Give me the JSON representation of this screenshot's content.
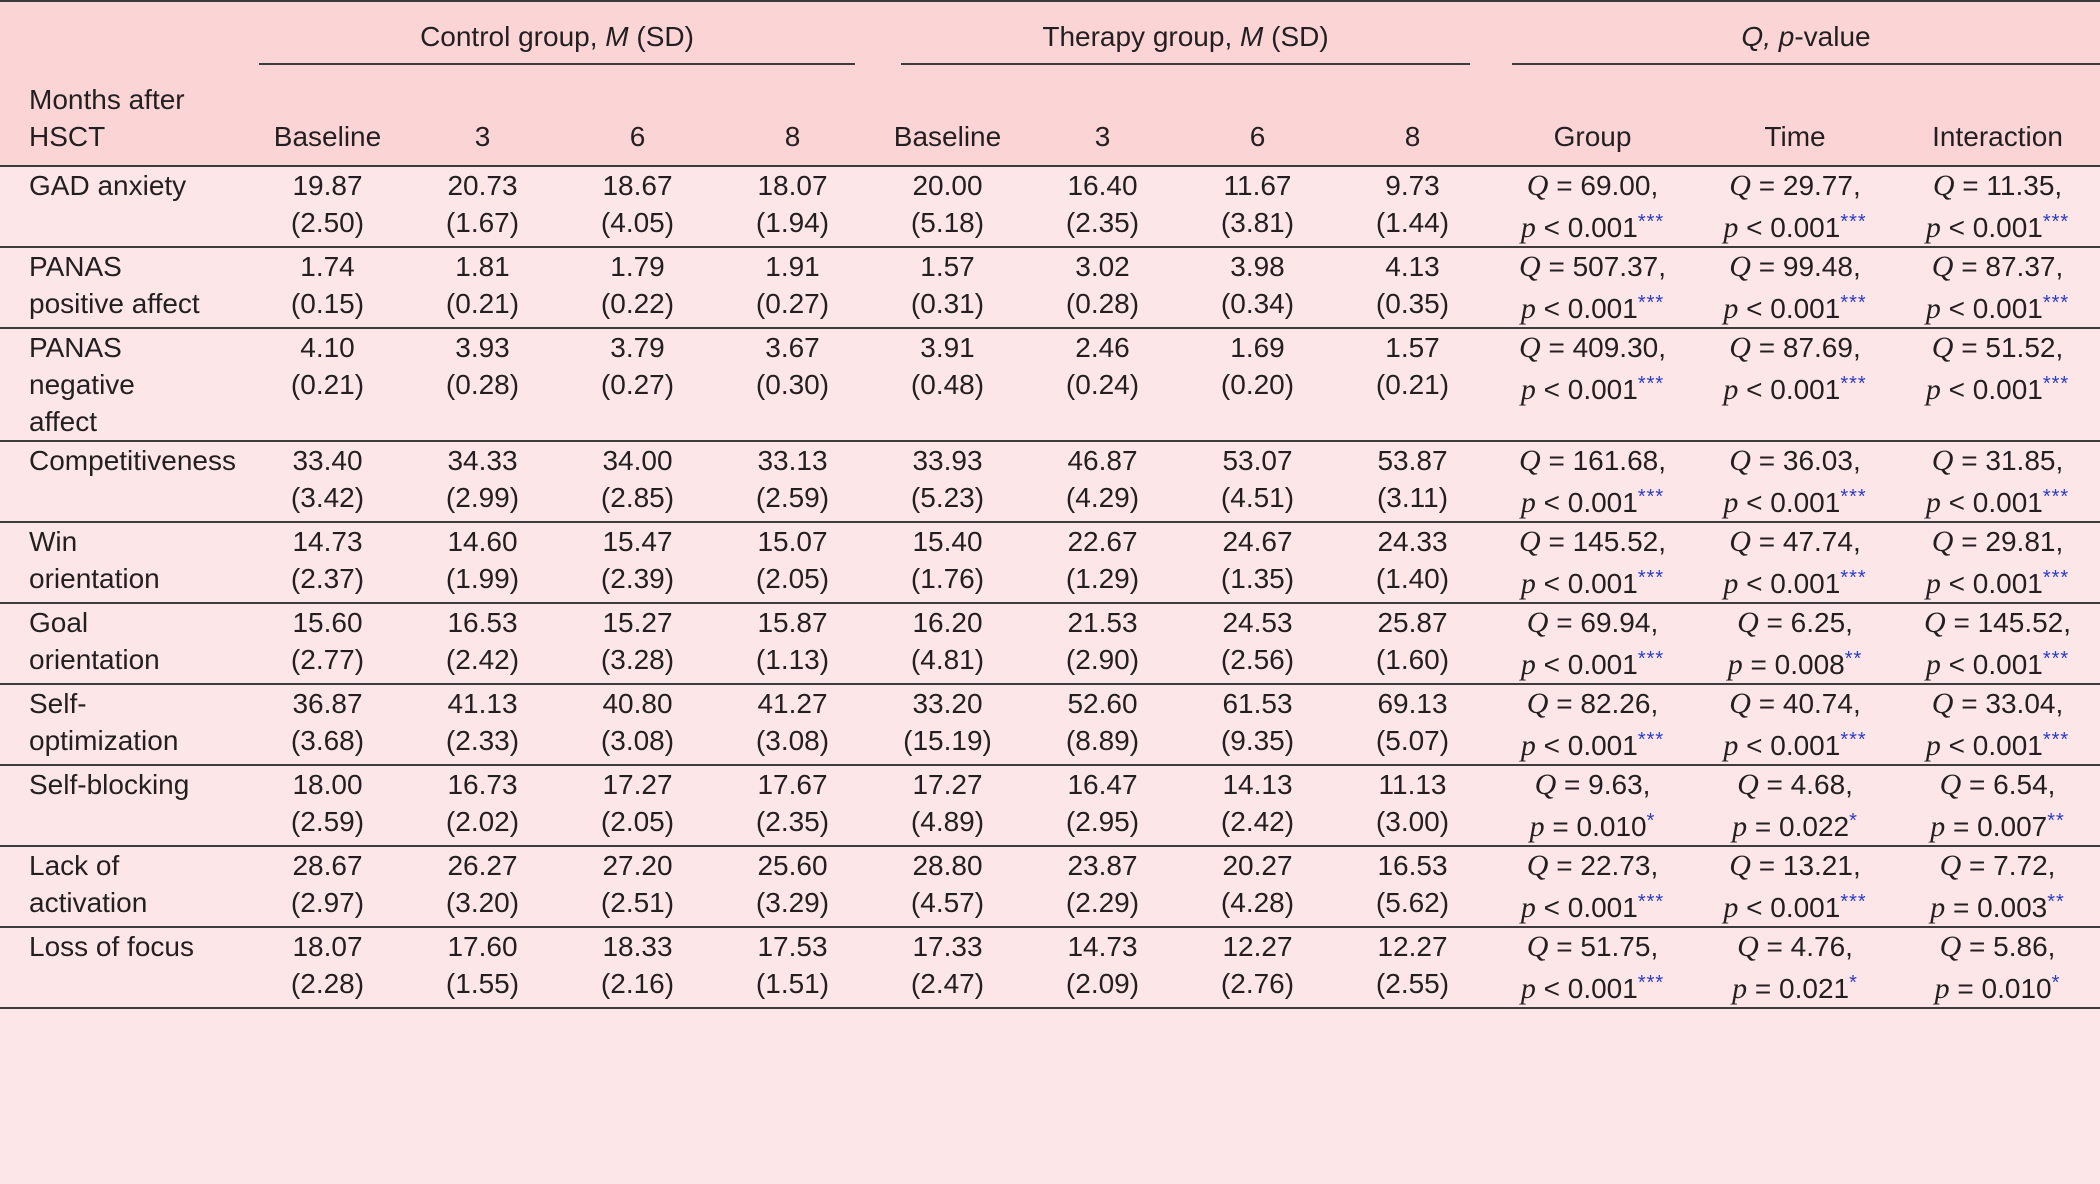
{
  "table": {
    "group_headers": [
      {
        "label_pre": "Control group, ",
        "label_ital": "M",
        "label_post": " (SD)"
      },
      {
        "label_pre": "Therapy group, ",
        "label_ital": "M",
        "label_post": " (SD)"
      },
      {
        "label_pre": "",
        "label_ital": "Q, p",
        "label_post": "-value"
      }
    ],
    "row_label_header_lines": [
      "Months after",
      "HSCT"
    ],
    "sub_headers": [
      "Baseline",
      "3",
      "6",
      "8",
      "Baseline",
      "3",
      "6",
      "8",
      "Group",
      "Time",
      "Interaction"
    ],
    "rows": [
      {
        "label_lines": [
          "GAD anxiety"
        ],
        "means": [
          [
            "19.87",
            "(2.50)"
          ],
          [
            "20.73",
            "(1.67)"
          ],
          [
            "18.67",
            "(4.05)"
          ],
          [
            "18.07",
            "(1.94)"
          ],
          [
            "20.00",
            "(5.18)"
          ],
          [
            "16.40",
            "(2.35)"
          ],
          [
            "11.67",
            "(3.81)"
          ],
          [
            "9.73",
            "(1.44)"
          ]
        ],
        "stats": [
          {
            "q": "69.00,",
            "rel": "<",
            "p": "0.001",
            "sig": "***"
          },
          {
            "q": "29.77,",
            "rel": "<",
            "p": "0.001",
            "sig": "***"
          },
          {
            "q": "11.35,",
            "rel": "<",
            "p": "0.001",
            "sig": "***"
          }
        ]
      },
      {
        "label_lines": [
          "PANAS",
          "positive affect"
        ],
        "means": [
          [
            "1.74",
            "(0.15)"
          ],
          [
            "1.81",
            "(0.21)"
          ],
          [
            "1.79",
            "(0.22)"
          ],
          [
            "1.91",
            "(0.27)"
          ],
          [
            "1.57",
            "(0.31)"
          ],
          [
            "3.02",
            "(0.28)"
          ],
          [
            "3.98",
            "(0.34)"
          ],
          [
            "4.13",
            "(0.35)"
          ]
        ],
        "stats": [
          {
            "q": "507.37,",
            "rel": "<",
            "p": "0.001",
            "sig": "***"
          },
          {
            "q": "99.48,",
            "rel": "<",
            "p": "0.001",
            "sig": "***"
          },
          {
            "q": "87.37,",
            "rel": "<",
            "p": "0.001",
            "sig": "***"
          }
        ]
      },
      {
        "label_lines": [
          "PANAS",
          "negative",
          "affect"
        ],
        "means": [
          [
            "4.10",
            "(0.21)"
          ],
          [
            "3.93",
            "(0.28)"
          ],
          [
            "3.79",
            "(0.27)"
          ],
          [
            "3.67",
            "(0.30)"
          ],
          [
            "3.91",
            "(0.48)"
          ],
          [
            "2.46",
            "(0.24)"
          ],
          [
            "1.69",
            "(0.20)"
          ],
          [
            "1.57",
            "(0.21)"
          ]
        ],
        "stats": [
          {
            "q": "409.30,",
            "rel": "<",
            "p": "0.001",
            "sig": "***"
          },
          {
            "q": "87.69,",
            "rel": "<",
            "p": "0.001",
            "sig": "***"
          },
          {
            "q": "51.52,",
            "rel": "<",
            "p": "0.001",
            "sig": "***"
          }
        ]
      },
      {
        "label_lines": [
          "Competitiveness"
        ],
        "means": [
          [
            "33.40",
            "(3.42)"
          ],
          [
            "34.33",
            "(2.99)"
          ],
          [
            "34.00",
            "(2.85)"
          ],
          [
            "33.13",
            "(2.59)"
          ],
          [
            "33.93",
            "(5.23)"
          ],
          [
            "46.87",
            "(4.29)"
          ],
          [
            "53.07",
            "(4.51)"
          ],
          [
            "53.87",
            "(3.11)"
          ]
        ],
        "stats": [
          {
            "q": "161.68,",
            "rel": "<",
            "p": "0.001",
            "sig": "***"
          },
          {
            "q": "36.03,",
            "rel": "<",
            "p": "0.001",
            "sig": "***"
          },
          {
            "q": "31.85,",
            "rel": "<",
            "p": "0.001",
            "sig": "***"
          }
        ]
      },
      {
        "label_lines": [
          "Win",
          "orientation"
        ],
        "means": [
          [
            "14.73",
            "(2.37)"
          ],
          [
            "14.60",
            "(1.99)"
          ],
          [
            "15.47",
            "(2.39)"
          ],
          [
            "15.07",
            "(2.05)"
          ],
          [
            "15.40",
            "(1.76)"
          ],
          [
            "22.67",
            "(1.29)"
          ],
          [
            "24.67",
            "(1.35)"
          ],
          [
            "24.33",
            "(1.40)"
          ]
        ],
        "stats": [
          {
            "q": "145.52,",
            "rel": "<",
            "p": "0.001",
            "sig": "***"
          },
          {
            "q": "47.74,",
            "rel": "<",
            "p": "0.001",
            "sig": "***"
          },
          {
            "q": "29.81,",
            "rel": "<",
            "p": "0.001",
            "sig": "***"
          }
        ]
      },
      {
        "label_lines": [
          "Goal",
          "orientation"
        ],
        "means": [
          [
            "15.60",
            "(2.77)"
          ],
          [
            "16.53",
            "(2.42)"
          ],
          [
            "15.27",
            "(3.28)"
          ],
          [
            "15.87",
            "(1.13)"
          ],
          [
            "16.20",
            "(4.81)"
          ],
          [
            "21.53",
            "(2.90)"
          ],
          [
            "24.53",
            "(2.56)"
          ],
          [
            "25.87",
            "(1.60)"
          ]
        ],
        "stats": [
          {
            "q": "69.94,",
            "rel": "<",
            "p": "0.001",
            "sig": "***"
          },
          {
            "q": "6.25,",
            "rel": "=",
            "p": "0.008",
            "sig": "**"
          },
          {
            "q": "145.52,",
            "rel": "<",
            "p": "0.001",
            "sig": "***"
          }
        ]
      },
      {
        "label_lines": [
          "Self-",
          "optimization"
        ],
        "means": [
          [
            "36.87",
            "(3.68)"
          ],
          [
            "41.13",
            "(2.33)"
          ],
          [
            "40.80",
            "(3.08)"
          ],
          [
            "41.27",
            "(3.08)"
          ],
          [
            "33.20",
            "(15.19)"
          ],
          [
            "52.60",
            "(8.89)"
          ],
          [
            "61.53",
            "(9.35)"
          ],
          [
            "69.13",
            "(5.07)"
          ]
        ],
        "stats": [
          {
            "q": "82.26,",
            "rel": "<",
            "p": "0.001",
            "sig": "***"
          },
          {
            "q": "40.74,",
            "rel": "<",
            "p": "0.001",
            "sig": "***"
          },
          {
            "q": "33.04,",
            "rel": "<",
            "p": "0.001",
            "sig": "***"
          }
        ]
      },
      {
        "label_lines": [
          "Self-blocking"
        ],
        "means": [
          [
            "18.00",
            "(2.59)"
          ],
          [
            "16.73",
            "(2.02)"
          ],
          [
            "17.27",
            "(2.05)"
          ],
          [
            "17.67",
            "(2.35)"
          ],
          [
            "17.27",
            "(4.89)"
          ],
          [
            "16.47",
            "(2.95)"
          ],
          [
            "14.13",
            "(2.42)"
          ],
          [
            "11.13",
            "(3.00)"
          ]
        ],
        "stats": [
          {
            "q": "9.63,",
            "rel": "=",
            "p": "0.010",
            "sig": "*"
          },
          {
            "q": "4.68,",
            "rel": "=",
            "p": "0.022",
            "sig": "*"
          },
          {
            "q": "6.54,",
            "rel": "=",
            "p": "0.007",
            "sig": "**"
          }
        ]
      },
      {
        "label_lines": [
          "Lack of",
          "activation"
        ],
        "means": [
          [
            "28.67",
            "(2.97)"
          ],
          [
            "26.27",
            "(3.20)"
          ],
          [
            "27.20",
            "(2.51)"
          ],
          [
            "25.60",
            "(3.29)"
          ],
          [
            "28.80",
            "(4.57)"
          ],
          [
            "23.87",
            "(2.29)"
          ],
          [
            "20.27",
            "(4.28)"
          ],
          [
            "16.53",
            "(5.62)"
          ]
        ],
        "stats": [
          {
            "q": "22.73,",
            "rel": "<",
            "p": "0.001",
            "sig": "***"
          },
          {
            "q": "13.21,",
            "rel": "<",
            "p": "0.001",
            "sig": "***"
          },
          {
            "q": "7.72,",
            "rel": "=",
            "p": "0.003",
            "sig": "**"
          }
        ]
      },
      {
        "label_lines": [
          "Loss of focus"
        ],
        "means": [
          [
            "18.07",
            "(2.28)"
          ],
          [
            "17.60",
            "(1.55)"
          ],
          [
            "18.33",
            "(2.16)"
          ],
          [
            "17.53",
            "(1.51)"
          ],
          [
            "17.33",
            "(2.47)"
          ],
          [
            "14.73",
            "(2.09)"
          ],
          [
            "12.27",
            "(2.76)"
          ],
          [
            "12.27",
            "(2.55)"
          ]
        ],
        "stats": [
          {
            "q": "51.75,",
            "rel": "<",
            "p": "0.001",
            "sig": "***"
          },
          {
            "q": "4.76,",
            "rel": "=",
            "p": "0.021",
            "sig": "*"
          },
          {
            "q": "5.86,",
            "rel": "=",
            "p": "0.010",
            "sig": "*"
          }
        ]
      }
    ]
  },
  "colors": {
    "header_bg": "#fbd4d6",
    "body_bg": "#fde6e7",
    "rule": "#3c3c3c",
    "significance": "#2b3cc4"
  }
}
